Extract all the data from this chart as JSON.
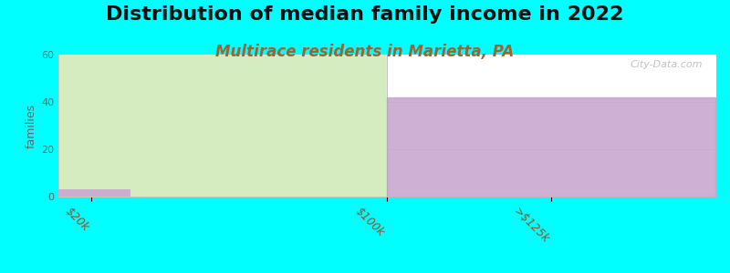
{
  "title": "Distribution of median family income in 2022",
  "subtitle": "Multirace residents in Marietta, PA",
  "background_color": "#00FFFF",
  "plot_bg_color": "#FFFFFF",
  "ylabel": "families",
  "ylim": [
    0,
    60
  ],
  "yticks": [
    0,
    20,
    40,
    60
  ],
  "categories": [
    "$20k",
    "$100k",
    ">$125k"
  ],
  "green_fill_color": "#D4ECC0",
  "purple_fill_color": "#C8A8D0",
  "small_bar_height": 3,
  "small_bar_width": 0.12,
  "large_bar_height": 42,
  "title_fontsize": 16,
  "subtitle_fontsize": 12,
  "subtitle_color": "#996633",
  "watermark": "City-Data.com",
  "tick_label_rotation": -45,
  "tick_label_color": "#885533",
  "grid_color": "#CCCCCC",
  "white_bg_color": "#FFFFFF"
}
